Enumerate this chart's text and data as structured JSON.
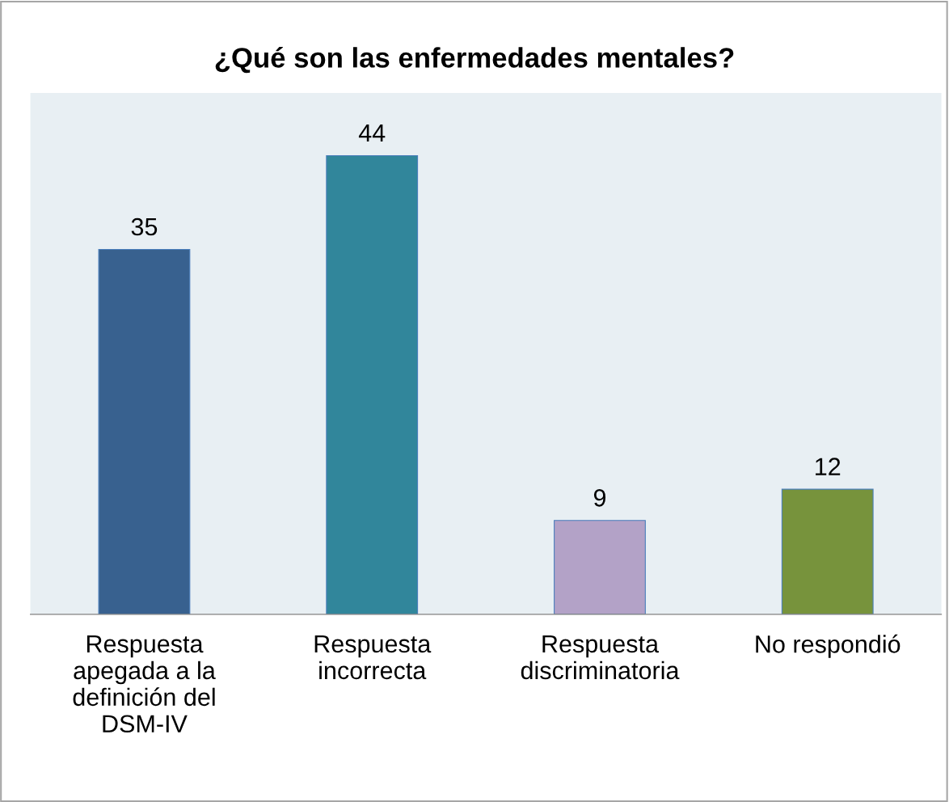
{
  "chart_data": {
    "type": "bar",
    "title": "¿Qué son las enfermedades mentales?",
    "categories": [
      "Respuesta\napegada a la\ndefinición del\nDSM-IV",
      "Respuesta\nincorrecta",
      "Respuesta\ndiscriminatoria",
      "No respondió"
    ],
    "values": [
      35,
      44,
      9,
      12
    ],
    "colors": [
      "#38618f",
      "#31869b",
      "#b3a2c7",
      "#77933c"
    ],
    "ylim": [
      0,
      50
    ],
    "tick_labels": "x",
    "data_labels": true,
    "grid": false
  }
}
